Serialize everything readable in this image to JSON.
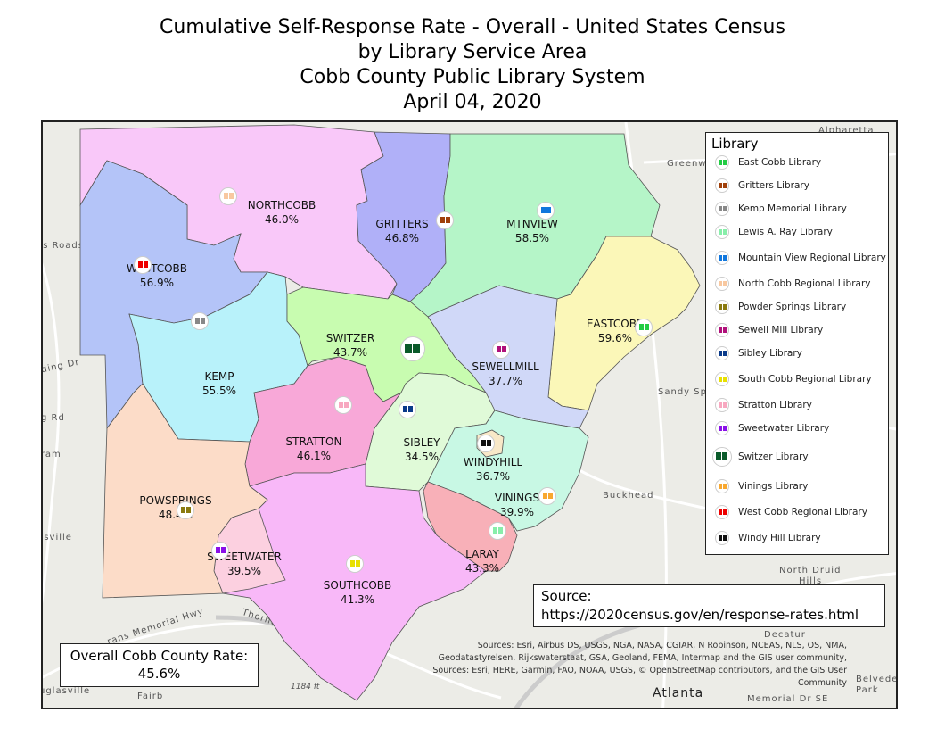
{
  "title": {
    "line1": "Cumulative Self-Response Rate - Overall - United States Census",
    "line2": "by Library Service Area",
    "line3": "Cobb County Public Library System",
    "line4": "April 04, 2020"
  },
  "regions": [
    {
      "name": "NORTHCOBB",
      "rate": "46.0%",
      "color": "#f9c8f9"
    },
    {
      "name": "GRITTERS",
      "rate": "46.8%",
      "color": "#b0b0f8"
    },
    {
      "name": "MTNVIEW",
      "rate": "58.5%",
      "color": "#b5f5c8"
    },
    {
      "name": "WESTCOBB",
      "rate": "56.9%",
      "color": "#b4c4f8"
    },
    {
      "name": "EASTCOBB",
      "rate": "59.6%",
      "color": "#fbf7b8"
    },
    {
      "name": "SWITZER",
      "rate": "43.7%",
      "color": "#c8fcb0"
    },
    {
      "name": "SEWELLMILL",
      "rate": "37.7%",
      "color": "#d0d8f8"
    },
    {
      "name": "KEMP",
      "rate": "55.5%",
      "color": "#b8f2fa"
    },
    {
      "name": "STRATTON",
      "rate": "46.1%",
      "color": "#f8a8d8"
    },
    {
      "name": "SIBLEY",
      "rate": "34.5%",
      "color": "#e0fad8"
    },
    {
      "name": "WINDYHILL",
      "rate": "36.7%",
      "color": "#f8e8c8"
    },
    {
      "name": "VININGS",
      "rate": "39.9%",
      "color": "#c8f8e4"
    },
    {
      "name": "POWSPRINGS",
      "rate": "48.4%",
      "color": "#fcdcc8"
    },
    {
      "name": "SWEETWATER",
      "rate": "39.5%",
      "color": "#fcd0e0"
    },
    {
      "name": "LARAY",
      "rate": "43.3%",
      "color": "#f8b0b8"
    },
    {
      "name": "SOUTHCOBB",
      "rate": "41.3%",
      "color": "#f8b8f8"
    }
  ],
  "legend": {
    "title": "Library",
    "items": [
      {
        "label": "East Cobb Library",
        "color": "#22cc44"
      },
      {
        "label": "Gritters Library",
        "color": "#a0400a"
      },
      {
        "label": "Kemp Memorial Library",
        "color": "#888888"
      },
      {
        "label": "Lewis A. Ray Library",
        "color": "#88eeaa"
      },
      {
        "label": "Mountain View Regional Library",
        "color": "#1177dd"
      },
      {
        "label": "North Cobb Regional Library",
        "color": "#f8c8a0"
      },
      {
        "label": "Powder Springs Library",
        "color": "#8a7a10"
      },
      {
        "label": "Sewell Mill Library",
        "color": "#b0107a"
      },
      {
        "label": "Sibley Library",
        "color": "#0a3a8a"
      },
      {
        "label": "South Cobb Regional Library",
        "color": "#e8e000"
      },
      {
        "label": "Stratton Library",
        "color": "#f8a8c0"
      },
      {
        "label": "Sweetwater Library",
        "color": "#8a10e8"
      },
      {
        "label": "Switzer Library",
        "color": "#0a5a2a"
      },
      {
        "label": "Vinings Library",
        "color": "#f8a830"
      },
      {
        "label": "West Cobb Regional Library",
        "color": "#ee0000"
      },
      {
        "label": "Windy Hill Library",
        "color": "#111111"
      }
    ]
  },
  "source": {
    "label": "Source:",
    "url": "https://2020census.gov/en/response-rates.html"
  },
  "overall": {
    "label": "Overall Cobb County Rate:",
    "value": "45.6%"
  },
  "attribution": {
    "line1": "Sources: Esri, Airbus DS, USGS, NGA, NASA, CGIAR, N Robinson, NCEAS, NLS, OS, NMA,",
    "line2": "Geodatastyrelsen, Rijkswaterstaat, GSA, Geoland, FEMA, Intermap and the GIS user community,",
    "line3": "Sources: Esri, HERE, Garmin, FAO, NOAA, USGS, © OpenStreetMap contributors, and the GIS User",
    "line4": "Community"
  },
  "basemap_labels": [
    "Alpharetta",
    "Greenway",
    "ss Roads",
    "ding Dr",
    "g Rd",
    "iram",
    "nsville",
    "Sandy Sp",
    "Buckhead",
    "North Druid",
    "Hills",
    "Thornton Rd",
    "uglasville",
    "Fairb",
    "1184 ft",
    "Atlanta",
    "Memorial Dr SE",
    "Decatur",
    "Belvedere",
    "Park",
    "rans Memorial Hwy"
  ]
}
